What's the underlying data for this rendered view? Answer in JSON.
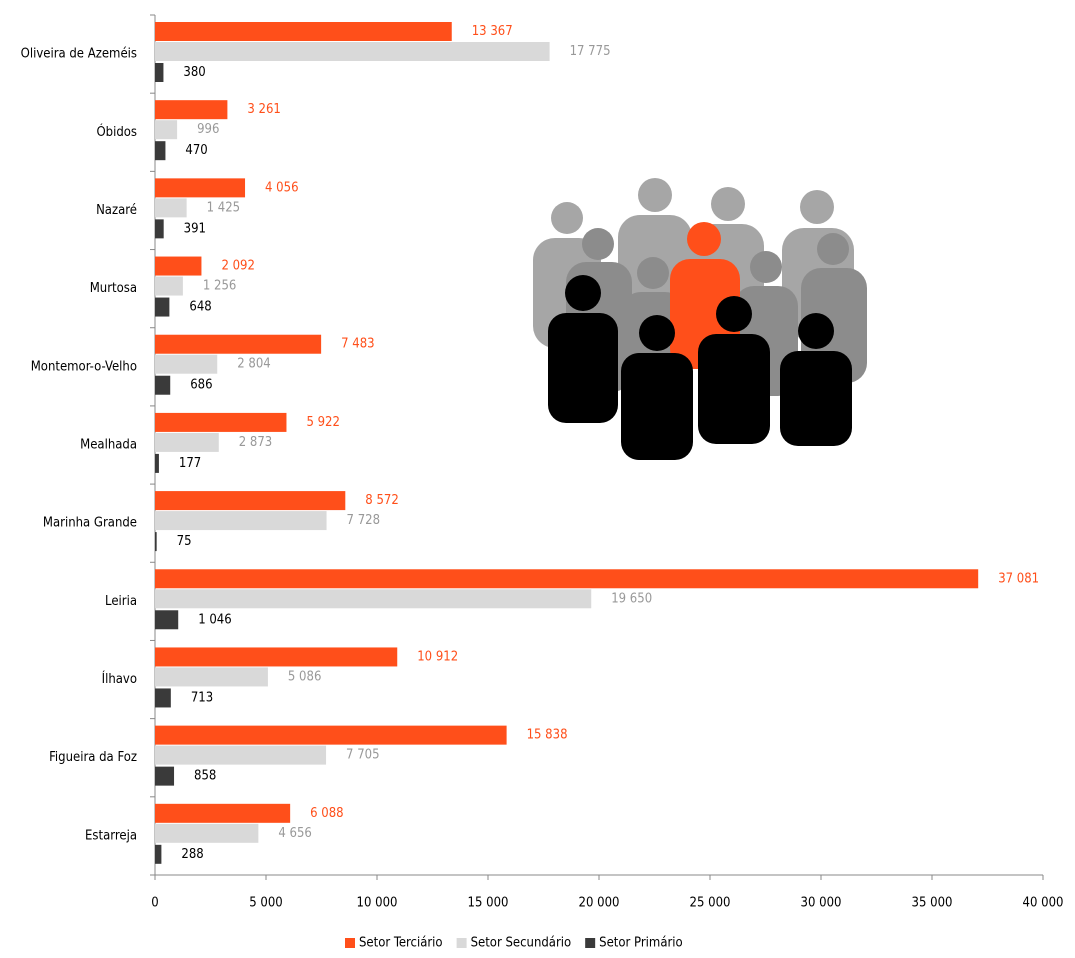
{
  "chart_data": {
    "type": "hbar",
    "categories": [
      "Oliveira de Azeméis",
      "Óbidos",
      "Nazaré",
      "Murtosa",
      "Montemor-o-Velho",
      "Mealhada",
      "Marinha Grande",
      "Leiria",
      "Ílhavo",
      "Figueira da Foz",
      "Estarreja"
    ],
    "series": [
      {
        "name": "Setor Terciário",
        "color": "#ff4f1a",
        "label_color": "#ff4f1a",
        "values": [
          13367,
          3261,
          4056,
          2092,
          7483,
          5922,
          8572,
          37081,
          10912,
          15838,
          6088
        ],
        "value_labels": [
          "13 367",
          "3 261",
          "4 056",
          "2 092",
          "7 483",
          "5 922",
          "8 572",
          "37 081",
          "10 912",
          "15 838",
          "6 088"
        ]
      },
      {
        "name": "Setor Secundário",
        "color": "#d9d9d9",
        "label_color": "#999999",
        "values": [
          17775,
          996,
          1425,
          1256,
          2804,
          2873,
          7728,
          19650,
          5086,
          7705,
          4656
        ],
        "value_labels": [
          "17 775",
          "996",
          "1 425",
          "1 256",
          "2 804",
          "2 873",
          "7 728",
          "19 650",
          "5 086",
          "7 705",
          "4 656"
        ]
      },
      {
        "name": "Setor Primário",
        "color": "#3a3a3a",
        "label_color": "#000000",
        "values": [
          380,
          470,
          391,
          648,
          686,
          177,
          75,
          1046,
          713,
          858,
          288
        ],
        "value_labels": [
          "380",
          "470",
          "391",
          "648",
          "686",
          "177",
          "75",
          "1 046",
          "713",
          "858",
          "288"
        ]
      }
    ],
    "xlim": [
      0,
      40000
    ],
    "xticks": [
      0,
      {
        "value": 5000,
        "label": "5 000"
      },
      {
        "value": 10000,
        "label": "10 000"
      },
      {
        "value": 15000,
        "label": "15 000"
      },
      {
        "value": 20000,
        "label": "20 000"
      },
      {
        "value": 25000,
        "label": "25 000"
      },
      {
        "value": 30000,
        "label": "30 000"
      },
      {
        "value": 35000,
        "label": "35 000"
      },
      {
        "value": 40000,
        "label": "40 000"
      }
    ],
    "legend": "bottom"
  }
}
